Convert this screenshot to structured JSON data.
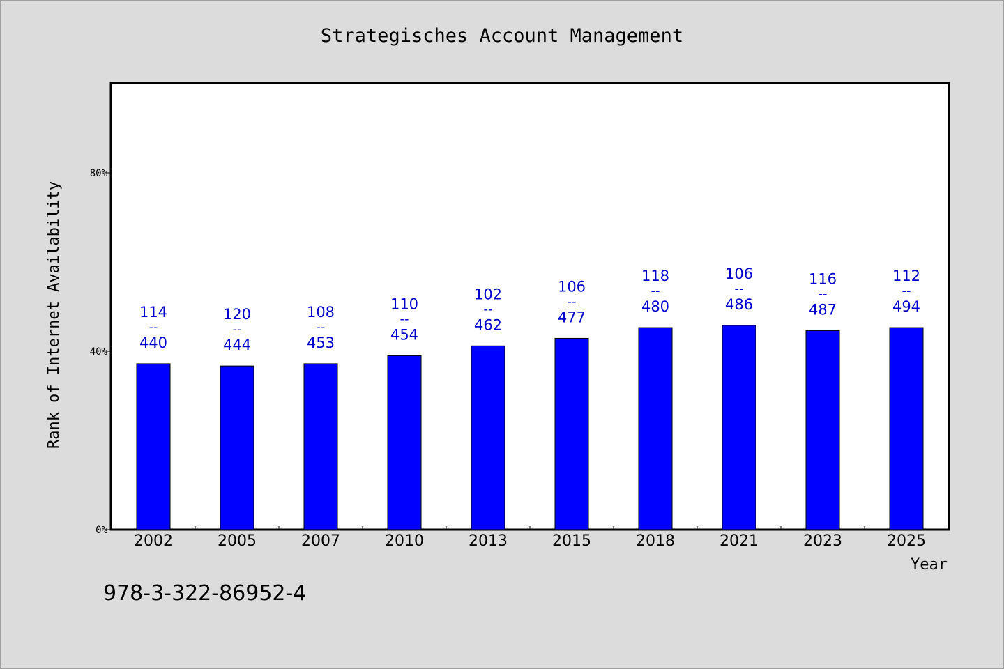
{
  "chart_data": {
    "type": "bar",
    "title": "Strategisches Account Management",
    "xlabel": "Year",
    "ylabel": "Rank of Internet Availability",
    "ylim": [
      0,
      100
    ],
    "yticks": [
      {
        "value": 0,
        "label": "0%"
      },
      {
        "value": 40,
        "label": "40%"
      },
      {
        "value": 80,
        "label": "80%"
      }
    ],
    "categories": [
      "2002",
      "2005",
      "2007",
      "2010",
      "2013",
      "2015",
      "2018",
      "2021",
      "2023",
      "2025"
    ],
    "values": [
      37.2,
      36.7,
      37.2,
      39.0,
      41.2,
      42.9,
      45.3,
      45.8,
      44.6,
      45.3
    ],
    "bar_labels": [
      {
        "top": "114",
        "sep": "--",
        "bottom": "440"
      },
      {
        "top": "120",
        "sep": "--",
        "bottom": "444"
      },
      {
        "top": "108",
        "sep": "--",
        "bottom": "453"
      },
      {
        "top": "110",
        "sep": "--",
        "bottom": "454"
      },
      {
        "top": "102",
        "sep": "--",
        "bottom": "462"
      },
      {
        "top": "106",
        "sep": "--",
        "bottom": "477"
      },
      {
        "top": "118",
        "sep": "--",
        "bottom": "480"
      },
      {
        "top": "106",
        "sep": "--",
        "bottom": "486"
      },
      {
        "top": "116",
        "sep": "--",
        "bottom": "487"
      },
      {
        "top": "112",
        "sep": "--",
        "bottom": "494"
      }
    ],
    "colors": {
      "bar": "#0000ff",
      "label": "#0000cc",
      "plot_bg": "#ffffff",
      "page_bg": "#dcdcdc"
    },
    "grid": false,
    "legend": "none"
  },
  "footer": {
    "isbn": "978-3-322-86952-4"
  }
}
